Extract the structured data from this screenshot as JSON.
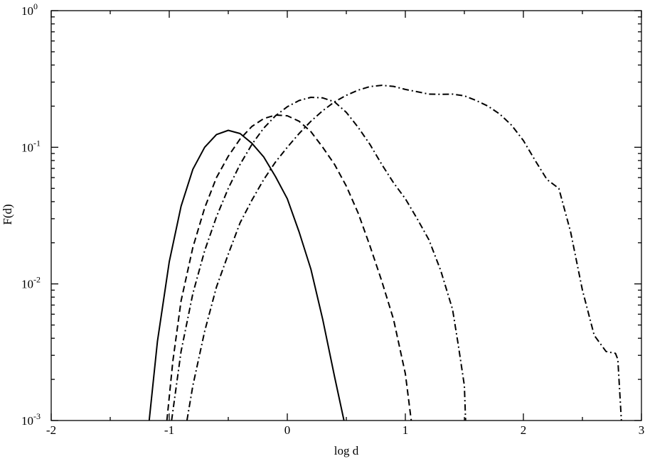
{
  "chart_data": {
    "type": "line",
    "xlabel": "log d",
    "ylabel": "F(d)",
    "xlim": [
      -2,
      3
    ],
    "ylim": [
      0.001,
      1
    ],
    "yscale": "log",
    "grid": false,
    "x_ticks": [
      -2,
      -1,
      0,
      1,
      2,
      3
    ],
    "x_tick_labels": [
      "-2",
      "-1",
      "0",
      "1",
      "2",
      "3"
    ],
    "y_ticks": [
      {
        "value": 0.001,
        "base": "10",
        "exp": "-3"
      },
      {
        "value": 0.01,
        "base": "10",
        "exp": "-2"
      },
      {
        "value": 0.1,
        "base": "10",
        "exp": "-1"
      },
      {
        "value": 1,
        "base": "10",
        "exp": "0"
      }
    ],
    "series": [
      {
        "style": "solid",
        "x": [
          -1.17,
          -1.1,
          -1.0,
          -0.9,
          -0.8,
          -0.7,
          -0.6,
          -0.5,
          -0.4,
          -0.3,
          -0.2,
          -0.1,
          0.0,
          0.1,
          0.2,
          0.3,
          0.4,
          0.48
        ],
        "y": [
          0.001,
          0.0038,
          0.0145,
          0.037,
          0.069,
          0.1,
          0.124,
          0.133,
          0.126,
          0.107,
          0.085,
          0.061,
          0.042,
          0.024,
          0.0128,
          0.0055,
          0.0021,
          0.001
        ]
      },
      {
        "style": "dashed",
        "x": [
          -1.02,
          -0.97,
          -0.9,
          -0.8,
          -0.7,
          -0.6,
          -0.5,
          -0.4,
          -0.3,
          -0.2,
          -0.1,
          0.0,
          0.1,
          0.2,
          0.3,
          0.4,
          0.5,
          0.6,
          0.7,
          0.8,
          0.9,
          1.0,
          1.05
        ],
        "y": [
          0.001,
          0.0027,
          0.0075,
          0.0185,
          0.036,
          0.06,
          0.086,
          0.115,
          0.142,
          0.162,
          0.172,
          0.17,
          0.155,
          0.13,
          0.1,
          0.075,
          0.052,
          0.033,
          0.019,
          0.0105,
          0.0055,
          0.0022,
          0.001
        ]
      },
      {
        "style": "dash-dot",
        "x": [
          -0.98,
          -0.9,
          -0.8,
          -0.7,
          -0.6,
          -0.5,
          -0.4,
          -0.3,
          -0.2,
          -0.1,
          0.0,
          0.1,
          0.2,
          0.3,
          0.4,
          0.5,
          0.6,
          0.7,
          0.8,
          0.9,
          1.0,
          1.1,
          1.2,
          1.3,
          1.4,
          1.45,
          1.5,
          1.51
        ],
        "y": [
          0.001,
          0.0032,
          0.0085,
          0.0175,
          0.031,
          0.05,
          0.075,
          0.105,
          0.138,
          0.17,
          0.198,
          0.22,
          0.232,
          0.23,
          0.215,
          0.18,
          0.14,
          0.105,
          0.075,
          0.055,
          0.042,
          0.03,
          0.021,
          0.0125,
          0.0065,
          0.0035,
          0.0018,
          0.001
        ]
      },
      {
        "style": "dash-dot",
        "x": [
          -0.85,
          -0.8,
          -0.7,
          -0.6,
          -0.5,
          -0.4,
          -0.3,
          -0.2,
          -0.1,
          0.0,
          0.1,
          0.2,
          0.3,
          0.4,
          0.5,
          0.6,
          0.7,
          0.8,
          0.9,
          1.0,
          1.1,
          1.2,
          1.3,
          1.4,
          1.5,
          1.6,
          1.7,
          1.8,
          1.9,
          2.0,
          2.1,
          2.2,
          2.3,
          2.4,
          2.5,
          2.6,
          2.7,
          2.78,
          2.8,
          2.83
        ],
        "y": [
          0.001,
          0.0018,
          0.0045,
          0.0095,
          0.0165,
          0.028,
          0.041,
          0.058,
          0.078,
          0.1,
          0.126,
          0.155,
          0.185,
          0.215,
          0.24,
          0.262,
          0.278,
          0.284,
          0.279,
          0.265,
          0.255,
          0.245,
          0.244,
          0.245,
          0.238,
          0.22,
          0.2,
          0.175,
          0.145,
          0.112,
          0.08,
          0.058,
          0.05,
          0.024,
          0.009,
          0.0042,
          0.0032,
          0.0031,
          0.0028,
          0.001
        ]
      }
    ]
  }
}
